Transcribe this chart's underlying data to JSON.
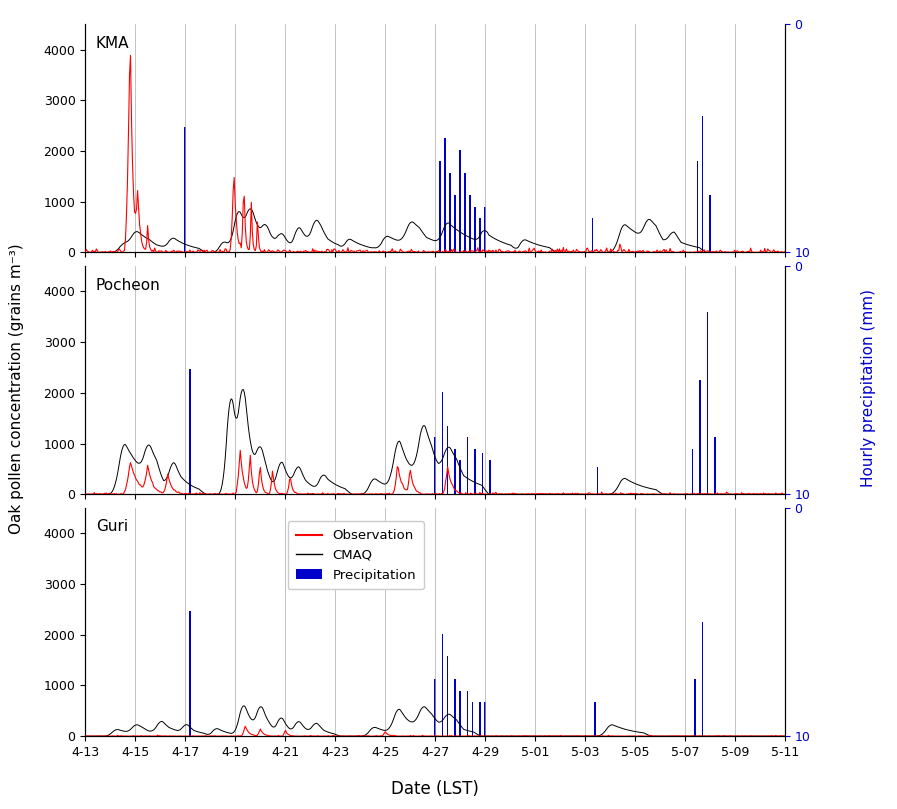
{
  "title": "",
  "xlabel": "Date (LST)",
  "ylabel_left": "Oak pollen concentration (grains m⁻³)",
  "ylabel_right": "Hourly precipitation (mm)",
  "sites": [
    "KMA",
    "Pocheon",
    "Guri"
  ],
  "date_labels": [
    "4-13",
    "4-15",
    "4-17",
    "4-19",
    "4-21",
    "4-23",
    "4-25",
    "4-27",
    "4-29",
    "5-01",
    "5-03",
    "5-05",
    "5-07",
    "5-09",
    "5-11"
  ],
  "ylim_pollen": [
    0,
    4500
  ],
  "ylim_precip_inv": [
    10,
    0
  ],
  "yticks_pollen": [
    0,
    1000,
    2000,
    3000,
    4000
  ],
  "obs_color": "#ff0000",
  "cmaq_color": "#000000",
  "precip_color": "#0000cd",
  "grid_color": "#aaaaaa",
  "background_color": "#ffffff",
  "kma_precip_times": [
    4.0,
    14.2,
    14.4,
    14.6,
    14.8,
    15.0,
    15.2,
    15.4,
    15.6,
    15.8,
    16.0,
    20.3,
    24.5,
    24.7,
    25.0
  ],
  "kma_precip_vals": [
    5.5,
    4.0,
    5.0,
    3.5,
    2.5,
    4.5,
    3.5,
    2.5,
    2.0,
    1.5,
    2.0,
    1.5,
    4.0,
    6.0,
    2.5
  ],
  "pocheon_precip_times": [
    4.2,
    14.0,
    14.3,
    14.5,
    14.8,
    15.0,
    15.3,
    15.6,
    15.9,
    16.2,
    20.5,
    24.3,
    24.6,
    24.9,
    25.2
  ],
  "pocheon_precip_vals": [
    5.5,
    2.5,
    4.5,
    3.0,
    2.0,
    1.5,
    2.5,
    2.0,
    1.8,
    1.5,
    1.2,
    2.0,
    5.0,
    8.0,
    2.5
  ],
  "guri_precip_times": [
    4.2,
    14.0,
    14.3,
    14.5,
    14.8,
    15.0,
    15.3,
    15.5,
    15.8,
    16.0,
    20.4,
    24.4,
    24.7
  ],
  "guri_precip_vals": [
    5.5,
    2.5,
    4.5,
    3.5,
    2.5,
    2.0,
    2.0,
    1.5,
    1.5,
    1.5,
    1.5,
    2.5,
    5.0
  ]
}
